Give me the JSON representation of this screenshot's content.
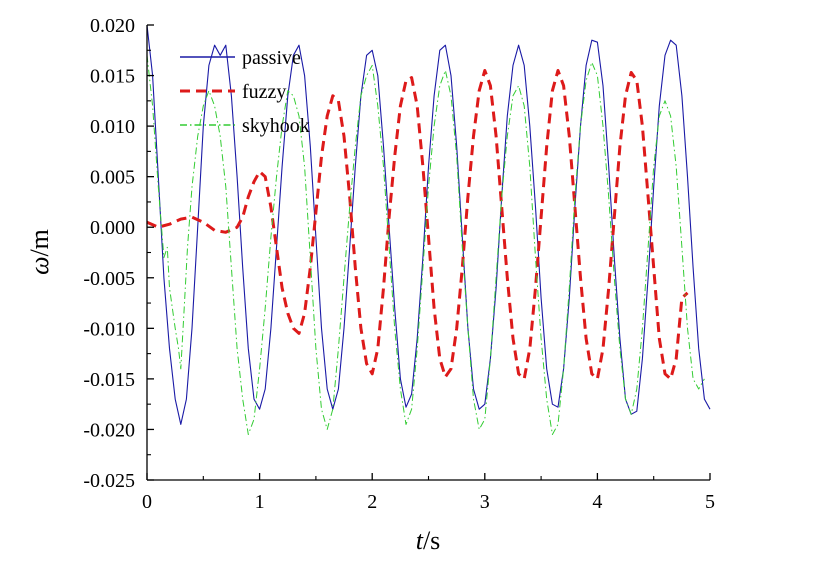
{
  "chart_data": {
    "type": "line",
    "xlabel_italic": "t",
    "xlabel_unit": "/s",
    "ylabel_italic": "ω",
    "ylabel_unit": "/m",
    "xlim": [
      0,
      5
    ],
    "ylim": [
      -0.025,
      0.02
    ],
    "x_ticks": [
      0,
      1,
      2,
      3,
      4,
      5
    ],
    "x_tick_labels": [
      "0",
      "1",
      "2",
      "3",
      "4",
      "5"
    ],
    "y_ticks": [
      0.02,
      0.015,
      0.01,
      0.005,
      0.0,
      -0.005,
      -0.01,
      -0.015,
      -0.02,
      -0.025
    ],
    "y_tick_labels": [
      "0.020",
      "0.015",
      "0.010",
      "0.005",
      "0.000",
      "-0.005",
      "-0.010",
      "-0.015",
      "-0.020",
      "-0.025"
    ],
    "grid": false,
    "legend_position": "top-left",
    "series": [
      {
        "name": "passive",
        "color": "#1a1aa6",
        "style": "solid",
        "points": [
          [
            0.0,
            0.02
          ],
          [
            0.05,
            0.015
          ],
          [
            0.1,
            0.005
          ],
          [
            0.15,
            -0.005
          ],
          [
            0.2,
            -0.012
          ],
          [
            0.25,
            -0.017
          ],
          [
            0.3,
            -0.0195
          ],
          [
            0.35,
            -0.017
          ],
          [
            0.4,
            -0.01
          ],
          [
            0.45,
            0.0
          ],
          [
            0.5,
            0.01
          ],
          [
            0.55,
            0.016
          ],
          [
            0.6,
            0.018
          ],
          [
            0.65,
            0.017
          ],
          [
            0.7,
            0.018
          ],
          [
            0.75,
            0.013
          ],
          [
            0.8,
            0.005
          ],
          [
            0.85,
            -0.004
          ],
          [
            0.9,
            -0.012
          ],
          [
            0.95,
            -0.017
          ],
          [
            1.0,
            -0.018
          ],
          [
            1.05,
            -0.016
          ],
          [
            1.1,
            -0.01
          ],
          [
            1.15,
            -0.002
          ],
          [
            1.2,
            0.006
          ],
          [
            1.25,
            0.013
          ],
          [
            1.3,
            0.017
          ],
          [
            1.35,
            0.018
          ],
          [
            1.4,
            0.015
          ],
          [
            1.45,
            0.008
          ],
          [
            1.5,
            -0.001
          ],
          [
            1.55,
            -0.01
          ],
          [
            1.6,
            -0.016
          ],
          [
            1.65,
            -0.018
          ],
          [
            1.7,
            -0.016
          ],
          [
            1.75,
            -0.01
          ],
          [
            1.8,
            -0.002
          ],
          [
            1.85,
            0.006
          ],
          [
            1.9,
            0.013
          ],
          [
            1.95,
            0.017
          ],
          [
            2.0,
            0.0175
          ],
          [
            2.05,
            0.015
          ],
          [
            2.1,
            0.008
          ],
          [
            2.15,
            0.0
          ],
          [
            2.2,
            -0.008
          ],
          [
            2.25,
            -0.015
          ],
          [
            2.3,
            -0.0178
          ],
          [
            2.35,
            -0.0165
          ],
          [
            2.4,
            -0.011
          ],
          [
            2.45,
            -0.003
          ],
          [
            2.5,
            0.006
          ],
          [
            2.55,
            0.013
          ],
          [
            2.6,
            0.0175
          ],
          [
            2.65,
            0.018
          ],
          [
            2.7,
            0.015
          ],
          [
            2.75,
            0.008
          ],
          [
            2.8,
            -0.001
          ],
          [
            2.85,
            -0.01
          ],
          [
            2.9,
            -0.016
          ],
          [
            2.95,
            -0.018
          ],
          [
            3.0,
            -0.0175
          ],
          [
            3.05,
            -0.013
          ],
          [
            3.1,
            -0.006
          ],
          [
            3.15,
            0.003
          ],
          [
            3.2,
            0.011
          ],
          [
            3.25,
            0.016
          ],
          [
            3.3,
            0.018
          ],
          [
            3.35,
            0.016
          ],
          [
            3.4,
            0.01
          ],
          [
            3.45,
            0.002
          ],
          [
            3.5,
            -0.007
          ],
          [
            3.55,
            -0.014
          ],
          [
            3.6,
            -0.0175
          ],
          [
            3.65,
            -0.0178
          ],
          [
            3.7,
            -0.014
          ],
          [
            3.75,
            -0.007
          ],
          [
            3.8,
            0.002
          ],
          [
            3.85,
            0.01
          ],
          [
            3.9,
            0.016
          ],
          [
            3.95,
            0.0185
          ],
          [
            4.0,
            0.0183
          ],
          [
            4.05,
            0.014
          ],
          [
            4.1,
            0.006
          ],
          [
            4.15,
            -0.003
          ],
          [
            4.2,
            -0.011
          ],
          [
            4.25,
            -0.017
          ],
          [
            4.3,
            -0.0185
          ],
          [
            4.35,
            -0.0182
          ],
          [
            4.4,
            -0.013
          ],
          [
            4.45,
            -0.005
          ],
          [
            4.5,
            0.004
          ],
          [
            4.55,
            0.012
          ],
          [
            4.6,
            0.017
          ],
          [
            4.65,
            0.0185
          ],
          [
            4.7,
            0.018
          ],
          [
            4.75,
            0.013
          ],
          [
            4.8,
            0.005
          ],
          [
            4.85,
            -0.004
          ],
          [
            4.9,
            -0.012
          ],
          [
            4.95,
            -0.017
          ],
          [
            5.0,
            -0.018
          ]
        ]
      },
      {
        "name": "fuzzy",
        "color": "#dd1a1a",
        "style": "dashed",
        "points": [
          [
            0.0,
            0.0005
          ],
          [
            0.1,
            0.0
          ],
          [
            0.2,
            0.0003
          ],
          [
            0.3,
            0.0008
          ],
          [
            0.4,
            0.001
          ],
          [
            0.5,
            0.0005
          ],
          [
            0.6,
            -0.0003
          ],
          [
            0.7,
            -0.0005
          ],
          [
            0.8,
            0.0
          ],
          [
            0.85,
            0.001
          ],
          [
            0.9,
            0.003
          ],
          [
            0.95,
            0.0045
          ],
          [
            1.0,
            0.0055
          ],
          [
            1.05,
            0.005
          ],
          [
            1.1,
            0.002
          ],
          [
            1.15,
            -0.002
          ],
          [
            1.2,
            -0.006
          ],
          [
            1.25,
            -0.0085
          ],
          [
            1.3,
            -0.01
          ],
          [
            1.35,
            -0.0105
          ],
          [
            1.4,
            -0.0085
          ],
          [
            1.45,
            -0.004
          ],
          [
            1.5,
            0.0015
          ],
          [
            1.55,
            0.007
          ],
          [
            1.6,
            0.011
          ],
          [
            1.65,
            0.013
          ],
          [
            1.7,
            0.0125
          ],
          [
            1.75,
            0.009
          ],
          [
            1.8,
            0.003
          ],
          [
            1.85,
            -0.004
          ],
          [
            1.9,
            -0.01
          ],
          [
            1.95,
            -0.0135
          ],
          [
            2.0,
            -0.0145
          ],
          [
            2.05,
            -0.012
          ],
          [
            2.1,
            -0.006
          ],
          [
            2.15,
            0.001
          ],
          [
            2.2,
            0.007
          ],
          [
            2.25,
            0.012
          ],
          [
            2.3,
            0.0145
          ],
          [
            2.35,
            0.0148
          ],
          [
            2.4,
            0.012
          ],
          [
            2.45,
            0.006
          ],
          [
            2.5,
            -0.001
          ],
          [
            2.55,
            -0.008
          ],
          [
            2.6,
            -0.013
          ],
          [
            2.65,
            -0.0148
          ],
          [
            2.7,
            -0.014
          ],
          [
            2.75,
            -0.01
          ],
          [
            2.8,
            -0.004
          ],
          [
            2.85,
            0.003
          ],
          [
            2.9,
            0.009
          ],
          [
            2.95,
            0.0135
          ],
          [
            3.0,
            0.0155
          ],
          [
            3.05,
            0.014
          ],
          [
            3.1,
            0.009
          ],
          [
            3.15,
            0.002
          ],
          [
            3.2,
            -0.005
          ],
          [
            3.25,
            -0.011
          ],
          [
            3.3,
            -0.0145
          ],
          [
            3.35,
            -0.015
          ],
          [
            3.4,
            -0.012
          ],
          [
            3.45,
            -0.006
          ],
          [
            3.5,
            0.001
          ],
          [
            3.55,
            0.008
          ],
          [
            3.6,
            0.0135
          ],
          [
            3.65,
            0.0155
          ],
          [
            3.7,
            0.014
          ],
          [
            3.75,
            0.009
          ],
          [
            3.8,
            0.002
          ],
          [
            3.85,
            -0.005
          ],
          [
            3.9,
            -0.011
          ],
          [
            3.95,
            -0.0145
          ],
          [
            4.0,
            -0.015
          ],
          [
            4.05,
            -0.012
          ],
          [
            4.1,
            -0.006
          ],
          [
            4.15,
            0.001
          ],
          [
            4.2,
            0.008
          ],
          [
            4.25,
            0.013
          ],
          [
            4.3,
            0.0153
          ],
          [
            4.35,
            0.0145
          ],
          [
            4.4,
            0.01
          ],
          [
            4.45,
            0.003
          ],
          [
            4.5,
            -0.004
          ],
          [
            4.55,
            -0.011
          ],
          [
            4.6,
            -0.0145
          ],
          [
            4.65,
            -0.015
          ],
          [
            4.7,
            -0.013
          ],
          [
            4.75,
            -0.007
          ],
          [
            4.8,
            -0.0065
          ]
        ]
      },
      {
        "name": "skyhook",
        "color": "#33cc33",
        "style": "dash-dot",
        "points": [
          [
            0.0,
            0.017
          ],
          [
            0.05,
            0.012
          ],
          [
            0.1,
            0.004
          ],
          [
            0.15,
            -0.003
          ],
          [
            0.18,
            -0.002
          ],
          [
            0.2,
            -0.006
          ],
          [
            0.25,
            -0.01
          ],
          [
            0.28,
            -0.012
          ],
          [
            0.3,
            -0.014
          ],
          [
            0.33,
            -0.008
          ],
          [
            0.36,
            -0.002
          ],
          [
            0.4,
            0.004
          ],
          [
            0.45,
            0.009
          ],
          [
            0.5,
            0.012
          ],
          [
            0.55,
            0.0135
          ],
          [
            0.6,
            0.012
          ],
          [
            0.65,
            0.009
          ],
          [
            0.7,
            0.004
          ],
          [
            0.75,
            -0.004
          ],
          [
            0.8,
            -0.012
          ],
          [
            0.85,
            -0.017
          ],
          [
            0.9,
            -0.0205
          ],
          [
            0.95,
            -0.019
          ],
          [
            1.0,
            -0.014
          ],
          [
            1.05,
            -0.008
          ],
          [
            1.1,
            -0.001
          ],
          [
            1.15,
            0.005
          ],
          [
            1.2,
            0.01
          ],
          [
            1.25,
            0.0135
          ],
          [
            1.3,
            0.013
          ],
          [
            1.35,
            0.011
          ],
          [
            1.4,
            0.006
          ],
          [
            1.45,
            -0.003
          ],
          [
            1.5,
            -0.012
          ],
          [
            1.55,
            -0.018
          ],
          [
            1.6,
            -0.02
          ],
          [
            1.65,
            -0.018
          ],
          [
            1.7,
            -0.012
          ],
          [
            1.75,
            -0.005
          ],
          [
            1.8,
            0.002
          ],
          [
            1.85,
            0.008
          ],
          [
            1.9,
            0.013
          ],
          [
            1.95,
            0.015
          ],
          [
            2.0,
            0.016
          ],
          [
            2.05,
            0.012
          ],
          [
            2.1,
            0.006
          ],
          [
            2.15,
            -0.002
          ],
          [
            2.2,
            -0.01
          ],
          [
            2.25,
            -0.016
          ],
          [
            2.3,
            -0.0195
          ],
          [
            2.35,
            -0.018
          ],
          [
            2.4,
            -0.012
          ],
          [
            2.45,
            -0.004
          ],
          [
            2.5,
            0.004
          ],
          [
            2.55,
            0.01
          ],
          [
            2.6,
            0.014
          ],
          [
            2.65,
            0.0155
          ],
          [
            2.7,
            0.013
          ],
          [
            2.75,
            0.007
          ],
          [
            2.8,
            -0.002
          ],
          [
            2.85,
            -0.01
          ],
          [
            2.9,
            -0.017
          ],
          [
            2.95,
            -0.02
          ],
          [
            3.0,
            -0.019
          ],
          [
            3.05,
            -0.013
          ],
          [
            3.1,
            -0.005
          ],
          [
            3.15,
            0.003
          ],
          [
            3.2,
            0.009
          ],
          [
            3.25,
            0.013
          ],
          [
            3.3,
            0.014
          ],
          [
            3.35,
            0.012
          ],
          [
            3.4,
            0.006
          ],
          [
            3.45,
            -0.003
          ],
          [
            3.5,
            -0.011
          ],
          [
            3.55,
            -0.017
          ],
          [
            3.6,
            -0.0205
          ],
          [
            3.65,
            -0.0195
          ],
          [
            3.7,
            -0.014
          ],
          [
            3.75,
            -0.006
          ],
          [
            3.8,
            0.003
          ],
          [
            3.85,
            0.01
          ],
          [
            3.9,
            0.0145
          ],
          [
            3.95,
            0.0163
          ],
          [
            4.0,
            0.015
          ],
          [
            4.05,
            0.01
          ],
          [
            4.1,
            0.003
          ],
          [
            4.15,
            -0.005
          ],
          [
            4.2,
            -0.012
          ],
          [
            4.25,
            -0.017
          ],
          [
            4.3,
            -0.0185
          ],
          [
            4.35,
            -0.016
          ],
          [
            4.4,
            -0.01
          ],
          [
            4.45,
            -0.002
          ],
          [
            4.5,
            0.006
          ],
          [
            4.55,
            0.011
          ],
          [
            4.6,
            0.0125
          ],
          [
            4.65,
            0.011
          ],
          [
            4.7,
            0.006
          ],
          [
            4.75,
            -0.002
          ],
          [
            4.8,
            -0.01
          ],
          [
            4.85,
            -0.015
          ],
          [
            4.9,
            -0.016
          ],
          [
            4.95,
            -0.015
          ]
        ]
      }
    ]
  }
}
